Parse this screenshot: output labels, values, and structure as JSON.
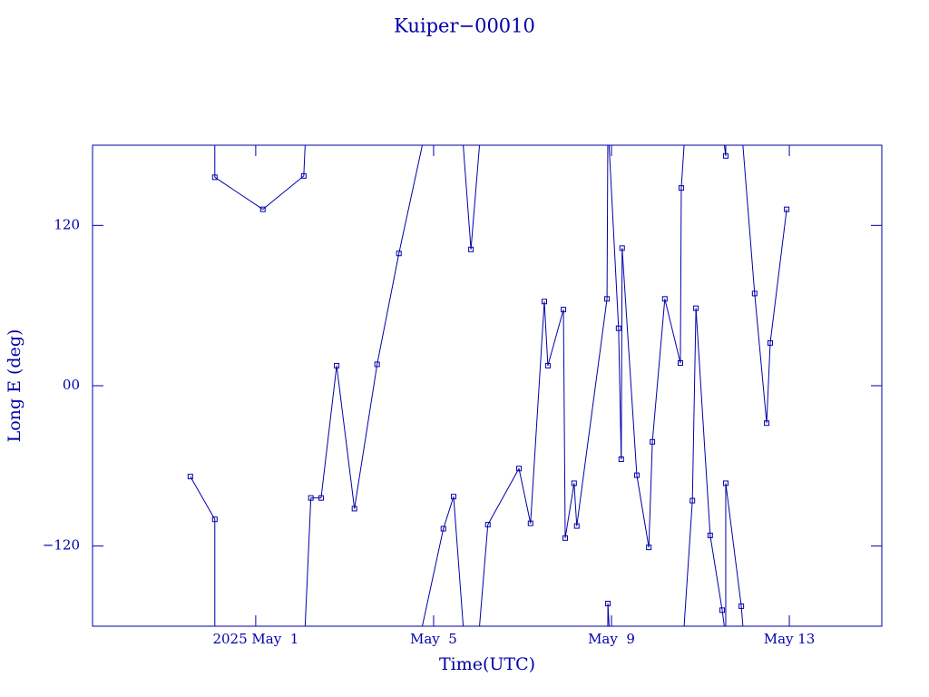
{
  "chart_data": {
    "type": "line",
    "title": "Kuiper−00010",
    "xlabel": "Time(UTC)",
    "ylabel": "Long E (deg)",
    "xlim": [
      -3.67,
      14.08
    ],
    "xticks": [
      {
        "value": 0,
        "label": "2025 May  1"
      },
      {
        "value": 4,
        "label": "May  5"
      },
      {
        "value": 8,
        "label": "May  9"
      },
      {
        "value": 12,
        "label": "May 13"
      }
    ],
    "ylim": [
      -180,
      180
    ],
    "yticks": [
      {
        "value": -120,
        "label": "−120"
      },
      {
        "value": 0,
        "label": "00"
      },
      120
    ],
    "wrap": true,
    "series": [
      {
        "color": "#0000a8",
        "x": [
          -1.47,
          -0.92,
          -0.92,
          0.16,
          1.08,
          1.24,
          1.47,
          1.82,
          2.22,
          2.73,
          3.22,
          4.22,
          4.45,
          4.84,
          5.22,
          5.92,
          6.18,
          6.49,
          6.57,
          6.92,
          6.96,
          7.16,
          7.22,
          7.9,
          7.92,
          8.16,
          8.22,
          8.24,
          8.57,
          8.84,
          8.92,
          9.2,
          9.55,
          9.57,
          9.82,
          9.9,
          10.22,
          10.49,
          10.57,
          10.57,
          10.92,
          11.22,
          11.49,
          11.57,
          11.94
        ],
        "values": [
          -68,
          -100,
          156,
          132,
          157,
          -84,
          -84,
          15,
          -92,
          16,
          99,
          -107,
          -83,
          102,
          -104,
          -62,
          -103,
          63,
          15,
          57,
          -114,
          -73,
          -105,
          65,
          -163,
          43,
          -55,
          103,
          -67,
          -121,
          -42,
          65,
          17,
          148,
          -86,
          58,
          -112,
          -168,
          172,
          -73,
          -165,
          69,
          -28,
          32,
          132
        ]
      }
    ]
  }
}
